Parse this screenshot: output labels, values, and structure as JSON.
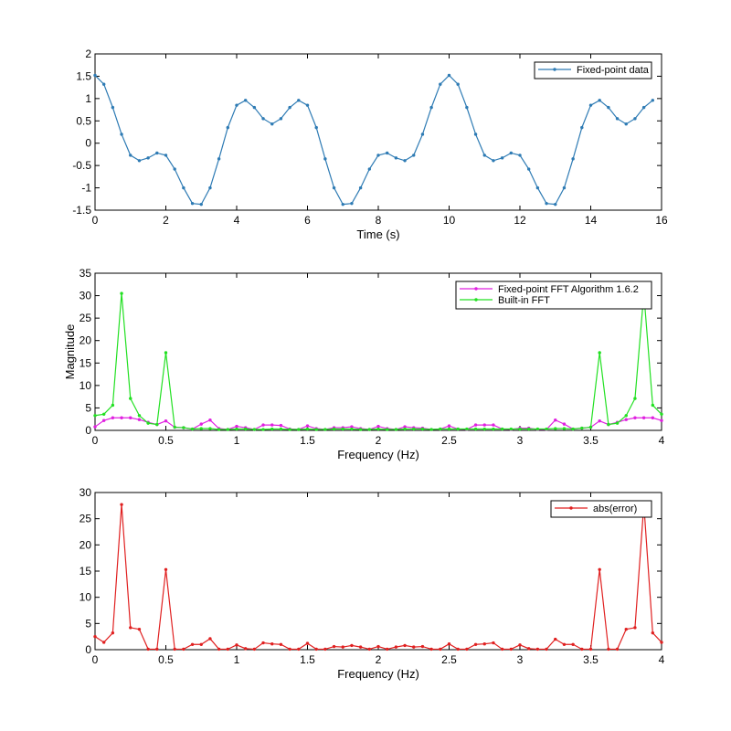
{
  "chart_data": [
    {
      "type": "line",
      "title": "",
      "xlabel": "Time (s)",
      "ylabel": "",
      "xlim": [
        0,
        16
      ],
      "ylim": [
        -1.5,
        2
      ],
      "xticks": [
        "0",
        "2",
        "4",
        "6",
        "8",
        "10",
        "12",
        "14",
        "16"
      ],
      "yticks": [
        "-1.5",
        "-1",
        "-0.5",
        "0",
        "0.5",
        "1",
        "1.5",
        "2"
      ],
      "grid": false,
      "legend": "top-right",
      "series": [
        {
          "name": "Fixed-point data",
          "color": "#2E7BB4",
          "x": [
            0,
            0.25,
            0.5,
            0.75,
            1,
            1.25,
            1.5,
            1.75,
            2,
            2.25,
            2.5,
            2.75,
            3,
            3.25,
            3.5,
            3.75,
            4,
            4.25,
            4.5,
            4.75,
            5,
            5.25,
            5.5,
            5.75,
            6,
            6.25,
            6.5,
            6.75,
            7,
            7.25,
            7.5,
            7.75,
            8,
            8.25,
            8.5,
            8.75,
            9,
            9.25,
            9.5,
            9.75,
            10,
            10.25,
            10.5,
            10.75,
            11,
            11.25,
            11.5,
            11.75,
            12,
            12.25,
            12.5,
            12.75,
            13,
            13.25,
            13.5,
            13.75,
            14,
            14.25,
            14.5,
            14.75,
            15,
            15.25,
            15.5,
            15.75
          ],
          "y": [
            1.52,
            1.32,
            0.8,
            0.2,
            -0.27,
            -0.39,
            -0.33,
            -0.22,
            -0.27,
            -0.58,
            -1.0,
            -1.35,
            -1.37,
            -1.0,
            -0.35,
            0.35,
            0.85,
            0.96,
            0.8,
            0.55,
            0.43,
            0.55,
            0.8,
            0.96,
            0.85,
            0.35,
            -0.35,
            -1.0,
            -1.37,
            -1.35,
            -1.0,
            -0.58,
            -0.27,
            -0.22,
            -0.33,
            -0.39,
            -0.27,
            0.2,
            0.8,
            1.32,
            1.52,
            1.32,
            0.8,
            0.2,
            -0.27,
            -0.39,
            -0.33,
            -0.22,
            -0.27,
            -0.58,
            -1.0,
            -1.35,
            -1.37,
            -1.0,
            -0.35,
            0.35,
            0.85,
            0.96,
            0.8,
            0.55,
            0.43,
            0.55,
            0.8,
            0.96
          ]
        }
      ]
    },
    {
      "type": "line",
      "title": "",
      "xlabel": "Frequency (Hz)",
      "ylabel": "Magnitude",
      "xlim": [
        0,
        4
      ],
      "ylim": [
        0,
        35
      ],
      "xticks": [
        "0",
        "0.5",
        "1",
        "1.5",
        "2",
        "2.5",
        "3",
        "3.5",
        "4"
      ],
      "yticks": [
        "0",
        "5",
        "10",
        "15",
        "20",
        "25",
        "30",
        "35"
      ],
      "grid": false,
      "legend": "top-right",
      "series": [
        {
          "name": "Fixed-point FFT Algorithm 1.6.2",
          "color": "#E020E0",
          "x": [
            0,
            0.0625,
            0.125,
            0.1875,
            0.25,
            0.3125,
            0.375,
            0.4375,
            0.5,
            0.5625,
            0.625,
            0.6875,
            0.75,
            0.8125,
            0.875,
            0.9375,
            1,
            1.0625,
            1.125,
            1.1875,
            1.25,
            1.3125,
            1.375,
            1.4375,
            1.5,
            1.5625,
            1.625,
            1.6875,
            1.75,
            1.8125,
            1.875,
            1.9375,
            2,
            2.0625,
            2.125,
            2.1875,
            2.25,
            2.3125,
            2.375,
            2.4375,
            2.5,
            2.5625,
            2.625,
            2.6875,
            2.75,
            2.8125,
            2.875,
            2.9375,
            3,
            3.0625,
            3.125,
            3.1875,
            3.25,
            3.3125,
            3.375,
            3.4375,
            3.5,
            3.5625,
            3.625,
            3.6875,
            3.75,
            3.8125,
            3.875,
            3.9375,
            4
          ],
          "y": [
            0.8,
            2.2,
            2.8,
            2.8,
            2.8,
            2.4,
            1.8,
            1.3,
            2.1,
            0.7,
            0.6,
            0.3,
            1.4,
            2.3,
            0.4,
            0.2,
            0.9,
            0.6,
            0.2,
            1.2,
            1.2,
            1.1,
            0.3,
            0.2,
            1.0,
            0.4,
            0.2,
            0.6,
            0.6,
            0.8,
            0.4,
            0.2,
            0.9,
            0.4,
            0.2,
            0.8,
            0.6,
            0.5,
            0.2,
            0.3,
            1.0,
            0.3,
            0.2,
            1.2,
            1.2,
            1.2,
            0.3,
            0.2,
            0.5,
            0.5,
            0.2,
            0.2,
            2.3,
            1.4,
            0.3,
            0.5,
            0.7,
            2.1,
            1.3,
            1.8,
            2.4,
            2.8,
            2.8,
            2.8,
            2.2
          ]
        },
        {
          "name": "Built-in FFT",
          "color": "#22E022",
          "x": [
            0,
            0.0625,
            0.125,
            0.1875,
            0.25,
            0.3125,
            0.375,
            0.4375,
            0.5,
            0.5625,
            0.625,
            0.6875,
            0.75,
            0.8125,
            0.875,
            0.9375,
            1,
            1.0625,
            1.125,
            1.1875,
            1.25,
            1.3125,
            1.375,
            1.4375,
            1.5,
            1.5625,
            1.625,
            1.6875,
            1.75,
            1.8125,
            1.875,
            1.9375,
            2,
            2.0625,
            2.125,
            2.1875,
            2.25,
            2.3125,
            2.375,
            2.4375,
            2.5,
            2.5625,
            2.625,
            2.6875,
            2.75,
            2.8125,
            2.875,
            2.9375,
            3,
            3.0625,
            3.125,
            3.1875,
            3.25,
            3.3125,
            3.375,
            3.4375,
            3.5,
            3.5625,
            3.625,
            3.6875,
            3.75,
            3.8125,
            3.875,
            3.9375,
            4
          ],
          "y": [
            3.3,
            3.6,
            5.6,
            30.5,
            7.1,
            3.3,
            1.6,
            1.3,
            17.3,
            0.7,
            0.6,
            0.3,
            0.4,
            0.4,
            0.2,
            0.2,
            0.3,
            0.3,
            0.2,
            0.2,
            0.3,
            0.3,
            0.2,
            0.2,
            0.3,
            0.2,
            0.2,
            0.3,
            0.3,
            0.3,
            0.2,
            0.2,
            0.3,
            0.2,
            0.2,
            0.3,
            0.3,
            0.3,
            0.2,
            0.3,
            0.3,
            0.3,
            0.3,
            0.3,
            0.3,
            0.3,
            0.3,
            0.3,
            0.3,
            0.3,
            0.3,
            0.3,
            0.4,
            0.4,
            0.3,
            0.5,
            0.7,
            17.3,
            1.3,
            1.6,
            3.3,
            7.1,
            30.5,
            5.6,
            3.6
          ]
        }
      ]
    },
    {
      "type": "line",
      "title": "",
      "xlabel": "Frequency (Hz)",
      "ylabel": "",
      "xlim": [
        0,
        4
      ],
      "ylim": [
        0,
        30
      ],
      "xticks": [
        "0",
        "0.5",
        "1",
        "1.5",
        "2",
        "2.5",
        "3",
        "3.5",
        "4"
      ],
      "yticks": [
        "0",
        "5",
        "10",
        "15",
        "20",
        "25",
        "30"
      ],
      "grid": false,
      "legend": "top-right",
      "series": [
        {
          "name": "abs(error)",
          "color": "#E02020",
          "x": [
            0,
            0.0625,
            0.125,
            0.1875,
            0.25,
            0.3125,
            0.375,
            0.4375,
            0.5,
            0.5625,
            0.625,
            0.6875,
            0.75,
            0.8125,
            0.875,
            0.9375,
            1,
            1.0625,
            1.125,
            1.1875,
            1.25,
            1.3125,
            1.375,
            1.4375,
            1.5,
            1.5625,
            1.625,
            1.6875,
            1.75,
            1.8125,
            1.875,
            1.9375,
            2,
            2.0625,
            2.125,
            2.1875,
            2.25,
            2.3125,
            2.375,
            2.4375,
            2.5,
            2.5625,
            2.625,
            2.6875,
            2.75,
            2.8125,
            2.875,
            2.9375,
            3,
            3.0625,
            3.125,
            3.1875,
            3.25,
            3.3125,
            3.375,
            3.4375,
            3.5,
            3.5625,
            3.625,
            3.6875,
            3.75,
            3.8125,
            3.875,
            3.9375,
            4
          ],
          "y": [
            2.5,
            1.4,
            3.2,
            27.7,
            4.2,
            3.9,
            0.1,
            0.1,
            15.3,
            0.1,
            0.1,
            1.0,
            1.0,
            2.1,
            0.1,
            0.1,
            0.9,
            0.2,
            0.1,
            1.3,
            1.1,
            1.0,
            0.1,
            0.1,
            1.2,
            0.1,
            0.1,
            0.6,
            0.5,
            0.8,
            0.5,
            0.1,
            0.6,
            0.1,
            0.5,
            0.8,
            0.5,
            0.6,
            0.1,
            0.1,
            1.1,
            0.1,
            0.1,
            1.0,
            1.1,
            1.3,
            0.1,
            0.1,
            0.9,
            0.2,
            0.1,
            0.1,
            2.0,
            1.0,
            1.0,
            0.1,
            0.1,
            15.3,
            0.1,
            0.1,
            3.9,
            4.2,
            27.7,
            3.2,
            1.4
          ]
        }
      ]
    }
  ]
}
